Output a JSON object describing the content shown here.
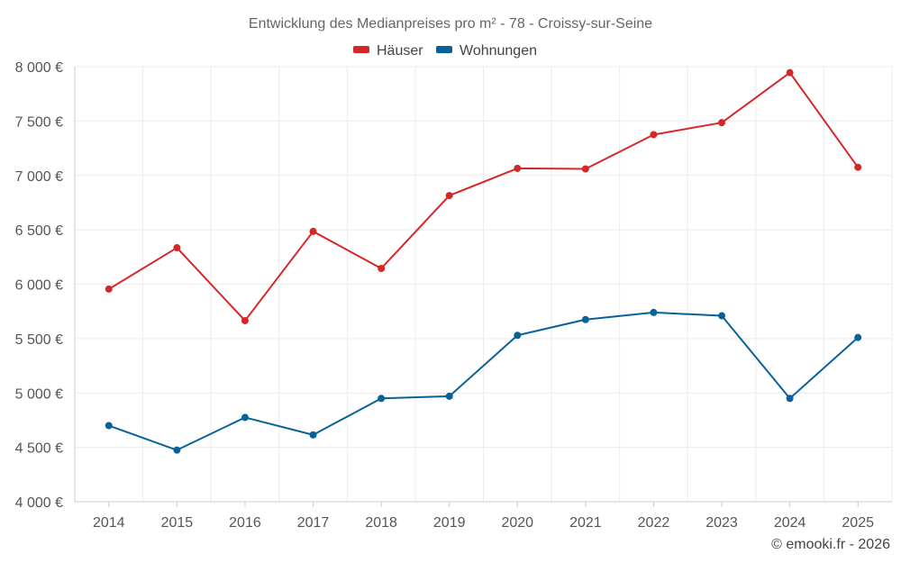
{
  "chart_data": {
    "type": "line",
    "title": "Entwicklung des Medianpreises pro m² - 78 - Croissy-sur-Seine",
    "xlabel": "",
    "ylabel": "",
    "categories": [
      "2014",
      "2015",
      "2016",
      "2017",
      "2018",
      "2019",
      "2020",
      "2021",
      "2022",
      "2023",
      "2024",
      "2025"
    ],
    "ylim": [
      4000,
      8000
    ],
    "yticks": [
      4000,
      4500,
      5000,
      5500,
      6000,
      6500,
      7000,
      7500,
      8000
    ],
    "ytick_labels": [
      "4 000 €",
      "4 500 €",
      "5 000 €",
      "5 500 €",
      "6 000 €",
      "6 500 €",
      "7 000 €",
      "7 500 €",
      "8 000 €"
    ],
    "grid": true,
    "legend_position": "top-center",
    "series": [
      {
        "name": "Häuser",
        "color": "#d62728",
        "values": [
          5955,
          6335,
          5665,
          6485,
          6145,
          6815,
          7065,
          7060,
          7375,
          7485,
          7945,
          7075
        ]
      },
      {
        "name": "Wohnungen",
        "color": "#08629a",
        "values": [
          4700,
          4475,
          4775,
          4615,
          4950,
          4970,
          5530,
          5675,
          5740,
          5710,
          4950,
          5510
        ]
      }
    ]
  },
  "credit": "© emooki.fr - 2026"
}
